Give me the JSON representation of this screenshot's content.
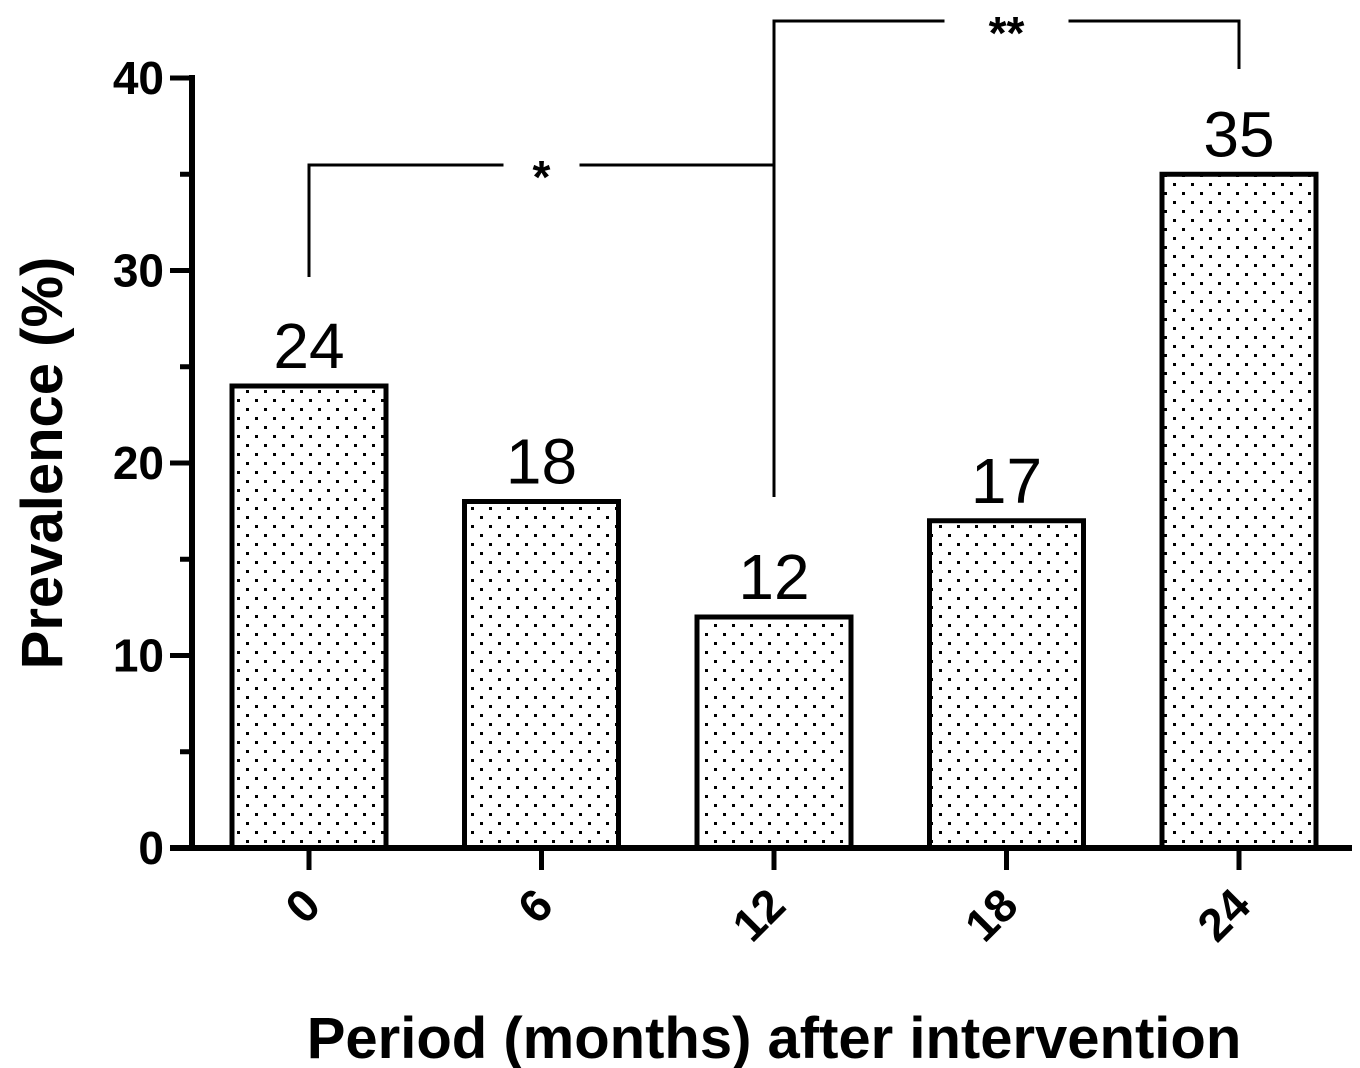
{
  "chart_data": {
    "type": "bar",
    "categories": [
      "0",
      "6",
      "12",
      "18",
      "24"
    ],
    "values": [
      24,
      18,
      12,
      17,
      35
    ],
    "data_labels": [
      "24",
      "18",
      "12",
      "17",
      "35"
    ],
    "title": "",
    "xlabel": "Period (months) after intervention",
    "ylabel": "Prevalence (%)",
    "ylim": [
      0,
      40
    ],
    "yticks": [
      0,
      10,
      20,
      30,
      40
    ],
    "yticks_labels": [
      "0",
      "10",
      "20",
      "30",
      "40"
    ],
    "grid": false,
    "bar_fill": "dotted",
    "bar_color": "#000000",
    "significance": [
      {
        "from": "0",
        "to": "12",
        "label": "*"
      },
      {
        "from": "12",
        "to": "24",
        "label": "**"
      }
    ]
  }
}
